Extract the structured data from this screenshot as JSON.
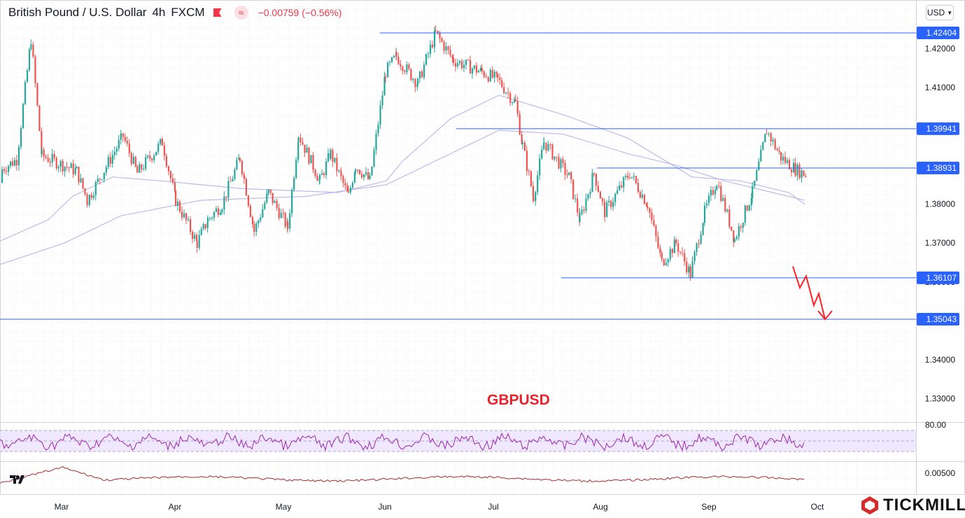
{
  "header": {
    "pair": "British Pound / U.S. Dollar",
    "timeframe": "4h",
    "source": "FXCM",
    "change": "−0.00759 (−0.56%)",
    "flag_icon": "flag-icon",
    "indicator_icon": "wave-icon"
  },
  "currency_selector": {
    "value": "USD"
  },
  "symbol_label": "GBPUSD",
  "brand": {
    "name": "TICKMILL",
    "logo_icon": "tickmill-logo-icon"
  },
  "tv_logo": "tradingview-logo-icon",
  "colors": {
    "bull": "#26a69a",
    "bear": "#ef5350",
    "level_line": "#2962ff",
    "ma": "#b2b5e8",
    "rsi": "#9c27b0",
    "rsi_band": "#e9defd",
    "osc": "#a52a2a",
    "forecast": "#ff2222"
  },
  "chart_data": {
    "type": "candlestick",
    "title": "British Pound / U.S. Dollar",
    "x_ticks": [
      "Mar",
      "Apr",
      "May",
      "Jun",
      "Jul",
      "Aug",
      "Sep",
      "Oct"
    ],
    "y_ticks": [
      "1.42000",
      "1.41000",
      "1.40000",
      "1.39000",
      "1.38000",
      "1.37000",
      "1.36000",
      "1.35000",
      "1.34000",
      "1.33000"
    ],
    "ylim": [
      1.3245,
      1.4325
    ],
    "levels": [
      {
        "value": 1.42404,
        "label": "1.42404",
        "from": "May 28"
      },
      {
        "value": 1.39941,
        "label": "1.39941",
        "from": "Jun 21"
      },
      {
        "value": 1.38931,
        "label": "1.38931",
        "from": "Jul 30"
      },
      {
        "value": 1.36107,
        "label": "1.36107",
        "from": "Jul 20"
      },
      {
        "value": 1.35043,
        "label": "1.35043",
        "from": "Feb 10"
      }
    ],
    "price_path": [
      {
        "date": "Feb 10",
        "price": 1.3855
      },
      {
        "date": "Feb 20",
        "price": 1.3915
      },
      {
        "date": "Feb 24",
        "price": 1.4225
      },
      {
        "date": "Feb 27",
        "price": 1.3925
      },
      {
        "date": "Mar 5",
        "price": 1.3885
      },
      {
        "date": "Mar 8",
        "price": 1.381
      },
      {
        "date": "Mar 18",
        "price": 1.3975
      },
      {
        "date": "Mar 22",
        "price": 1.388
      },
      {
        "date": "Mar 29",
        "price": 1.396
      },
      {
        "date": "Apr 1",
        "price": 1.381
      },
      {
        "date": "Apr 7",
        "price": 1.37
      },
      {
        "date": "Apr 10",
        "price": 1.376
      },
      {
        "date": "Apr 14",
        "price": 1.38
      },
      {
        "date": "Apr 19",
        "price": 1.392
      },
      {
        "date": "Apr 23",
        "price": 1.373
      },
      {
        "date": "Apr 27",
        "price": 1.383
      },
      {
        "date": "May 2",
        "price": 1.374
      },
      {
        "date": "May 5",
        "price": 1.398
      },
      {
        "date": "May 11",
        "price": 1.386
      },
      {
        "date": "May 14",
        "price": 1.393
      },
      {
        "date": "May 19",
        "price": 1.382
      },
      {
        "date": "May 21",
        "price": 1.39
      },
      {
        "date": "May 25",
        "price": 1.386
      },
      {
        "date": "Jun 1",
        "price": 1.414
      },
      {
        "date": "Jun 4",
        "price": 1.418
      },
      {
        "date": "Jun 10",
        "price": 1.411
      },
      {
        "date": "Jun 15",
        "price": 1.424
      },
      {
        "date": "Jun 20",
        "price": 1.417
      },
      {
        "date": "Jun 28",
        "price": 1.414
      },
      {
        "date": "Jul 2",
        "price": 1.412
      },
      {
        "date": "Jul 7",
        "price": 1.406
      },
      {
        "date": "Jul 9",
        "price": 1.395
      },
      {
        "date": "Jul 12",
        "price": 1.382
      },
      {
        "date": "Jul 15",
        "price": 1.396
      },
      {
        "date": "Jul 22",
        "price": 1.387
      },
      {
        "date": "Jul 25",
        "price": 1.376
      },
      {
        "date": "Jul 29",
        "price": 1.388
      },
      {
        "date": "Aug 2",
        "price": 1.378
      },
      {
        "date": "Aug 9",
        "price": 1.388
      },
      {
        "date": "Aug 14",
        "price": 1.38
      },
      {
        "date": "Aug 18",
        "price": 1.365
      },
      {
        "date": "Aug 22",
        "price": 1.37
      },
      {
        "date": "Aug 26",
        "price": 1.362
      },
      {
        "date": "Aug 30",
        "price": 1.378
      },
      {
        "date": "Sep 3",
        "price": 1.386
      },
      {
        "date": "Sep 8",
        "price": 1.371
      },
      {
        "date": "Sep 13",
        "price": 1.383
      },
      {
        "date": "Sep 17",
        "price": 1.399
      },
      {
        "date": "Sep 21",
        "price": 1.392
      },
      {
        "date": "Sep 25",
        "price": 1.389
      },
      {
        "date": "Sep 29",
        "price": 1.387
      },
      {
        "date": "Oct 1",
        "price": 1.363
      },
      {
        "date": "Oct 5",
        "price": 1.374
      },
      {
        "date": "Oct 10",
        "price": 1.361
      },
      {
        "date": "Oct 15",
        "price": 1.372
      },
      {
        "date": "Oct 18",
        "price": 1.366
      }
    ],
    "moving_averages": [
      {
        "name": "ma-fast",
        "points": [
          [
            0,
            1.3705
          ],
          [
            0.06,
            1.376
          ],
          [
            0.09,
            1.382
          ],
          [
            0.14,
            1.387
          ],
          [
            0.2,
            1.386
          ],
          [
            0.3,
            1.384
          ],
          [
            0.42,
            1.383
          ],
          [
            0.48,
            1.386
          ],
          [
            0.5,
            1.391
          ],
          [
            0.56,
            1.402
          ],
          [
            0.62,
            1.408
          ],
          [
            0.7,
            1.403
          ],
          [
            0.78,
            1.397
          ],
          [
            0.86,
            1.387
          ],
          [
            0.92,
            1.386
          ],
          [
            0.98,
            1.383
          ],
          [
            1,
            1.38
          ]
        ]
      },
      {
        "name": "ma-slow",
        "points": [
          [
            0,
            1.3645
          ],
          [
            0.08,
            1.37
          ],
          [
            0.15,
            1.377
          ],
          [
            0.25,
            1.381
          ],
          [
            0.38,
            1.382
          ],
          [
            0.48,
            1.385
          ],
          [
            0.56,
            1.393
          ],
          [
            0.62,
            1.399
          ],
          [
            0.7,
            1.398
          ],
          [
            0.78,
            1.393
          ],
          [
            0.84,
            1.39
          ],
          [
            0.9,
            1.386
          ],
          [
            0.96,
            1.383
          ],
          [
            1,
            1.381
          ]
        ]
      }
    ],
    "forecast_path": [
      1.364,
      1.3585,
      1.3615,
      1.354,
      1.357,
      1.3504
    ],
    "rsi": {
      "level_label": "80.00",
      "levels": [
        30,
        50,
        70
      ],
      "series_ranges": [
        35,
        80
      ]
    },
    "oscillator": {
      "level_label": "0.00500"
    }
  }
}
